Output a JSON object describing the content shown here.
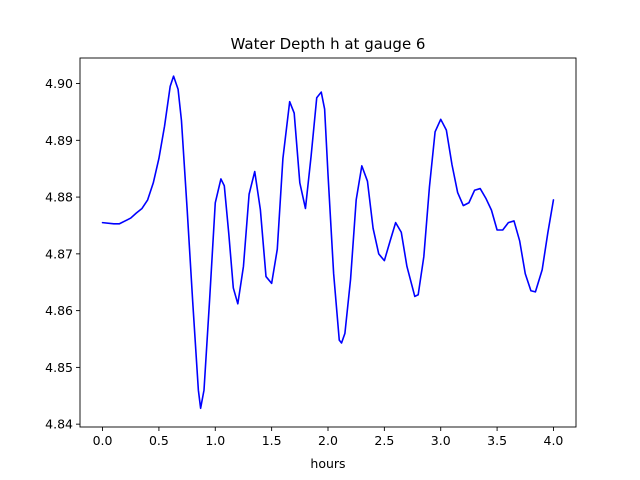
{
  "chart_data": {
    "type": "line",
    "title": "Water Depth h at gauge 6",
    "xlabel": "hours",
    "ylabel": "",
    "xlim": [
      -0.2,
      4.2
    ],
    "ylim": [
      4.8395,
      4.9045
    ],
    "xticks": [
      0.0,
      0.5,
      1.0,
      1.5,
      2.0,
      2.5,
      3.0,
      3.5,
      4.0
    ],
    "xtick_labels": [
      "0.0",
      "0.5",
      "1.0",
      "1.5",
      "2.0",
      "2.5",
      "3.0",
      "3.5",
      "4.0"
    ],
    "yticks": [
      4.84,
      4.85,
      4.86,
      4.87,
      4.88,
      4.89,
      4.9
    ],
    "ytick_labels": [
      "4.84",
      "4.85",
      "4.86",
      "4.87",
      "4.88",
      "4.89",
      "4.90"
    ],
    "grid": false,
    "series": [
      {
        "color": "#0000ff",
        "x": [
          0.0,
          0.1,
          0.15,
          0.2,
          0.25,
          0.3,
          0.35,
          0.4,
          0.45,
          0.5,
          0.55,
          0.6,
          0.63,
          0.67,
          0.7,
          0.75,
          0.8,
          0.85,
          0.87,
          0.9,
          0.95,
          1.0,
          1.05,
          1.08,
          1.12,
          1.16,
          1.2,
          1.25,
          1.3,
          1.35,
          1.4,
          1.45,
          1.5,
          1.55,
          1.6,
          1.66,
          1.7,
          1.75,
          1.8,
          1.85,
          1.9,
          1.94,
          1.97,
          2.0,
          2.05,
          2.1,
          2.12,
          2.15,
          2.2,
          2.25,
          2.3,
          2.35,
          2.4,
          2.45,
          2.5,
          2.55,
          2.6,
          2.65,
          2.7,
          2.77,
          2.8,
          2.85,
          2.9,
          2.95,
          3.0,
          3.05,
          3.1,
          3.15,
          3.2,
          3.25,
          3.3,
          3.35,
          3.4,
          3.45,
          3.5,
          3.55,
          3.6,
          3.65,
          3.7,
          3.75,
          3.8,
          3.84,
          3.9,
          3.95,
          4.0
        ],
        "y": [
          4.8755,
          4.8753,
          4.8753,
          4.8758,
          4.8763,
          4.8772,
          4.878,
          4.8795,
          4.8825,
          4.8868,
          4.8925,
          4.8995,
          4.9013,
          4.899,
          4.8935,
          4.878,
          4.8615,
          4.846,
          4.8428,
          4.846,
          4.862,
          4.879,
          4.8832,
          4.882,
          4.8735,
          4.864,
          4.8612,
          4.8678,
          4.8805,
          4.8845,
          4.8778,
          4.866,
          4.8648,
          4.8708,
          4.8868,
          4.8968,
          4.8948,
          4.8825,
          4.878,
          4.8872,
          4.8975,
          4.8985,
          4.8955,
          4.884,
          4.8665,
          4.8548,
          4.8543,
          4.856,
          4.8655,
          4.8795,
          4.8855,
          4.8828,
          4.8745,
          4.87,
          4.8688,
          4.8722,
          4.8755,
          4.8738,
          4.8678,
          4.8625,
          4.8628,
          4.8695,
          4.8818,
          4.8915,
          4.8937,
          4.8918,
          4.8857,
          4.8808,
          4.8785,
          4.879,
          4.8812,
          4.8815,
          4.8798,
          4.8777,
          4.8742,
          4.8742,
          4.8755,
          4.8758,
          4.8723,
          4.8665,
          4.8635,
          4.8633,
          4.8672,
          4.8737,
          4.8795
        ]
      }
    ]
  }
}
